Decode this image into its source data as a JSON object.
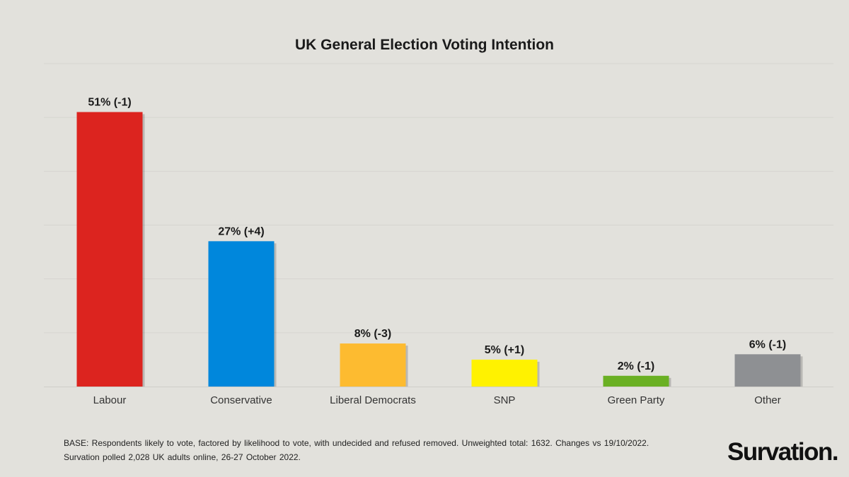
{
  "chart_data": {
    "type": "bar",
    "title": "UK General Election Voting Intention",
    "categories": [
      "Labour",
      "Conservative",
      "Liberal Democrats",
      "SNP",
      "Green Party",
      "Other"
    ],
    "values": [
      51,
      27,
      8,
      5,
      2,
      6
    ],
    "changes": [
      "-1",
      "+4",
      "-3",
      "+1",
      "-1",
      "-1"
    ],
    "data_labels": [
      "51% (-1)",
      "27% (+4)",
      "8% (-3)",
      "5% (+1)",
      "2% (-1)",
      "6% (-1)"
    ],
    "colors": [
      "#dc241f",
      "#0087dc",
      "#fdbb30",
      "#fff200",
      "#6ab023",
      "#8e9093"
    ],
    "unit": "%",
    "ylim": [
      0,
      60
    ],
    "grid": true,
    "xlabel": "",
    "ylabel": ""
  },
  "footnote": {
    "line1": "BASE: Respondents likely to vote, factored by likelihood to vote, with undecided and refused removed. Unweighted total: 1632. Changes vs 19/10/2022.",
    "line2": "Survation polled 2,028 UK adults online, 26-27 October 2022."
  },
  "logo": "Survation."
}
